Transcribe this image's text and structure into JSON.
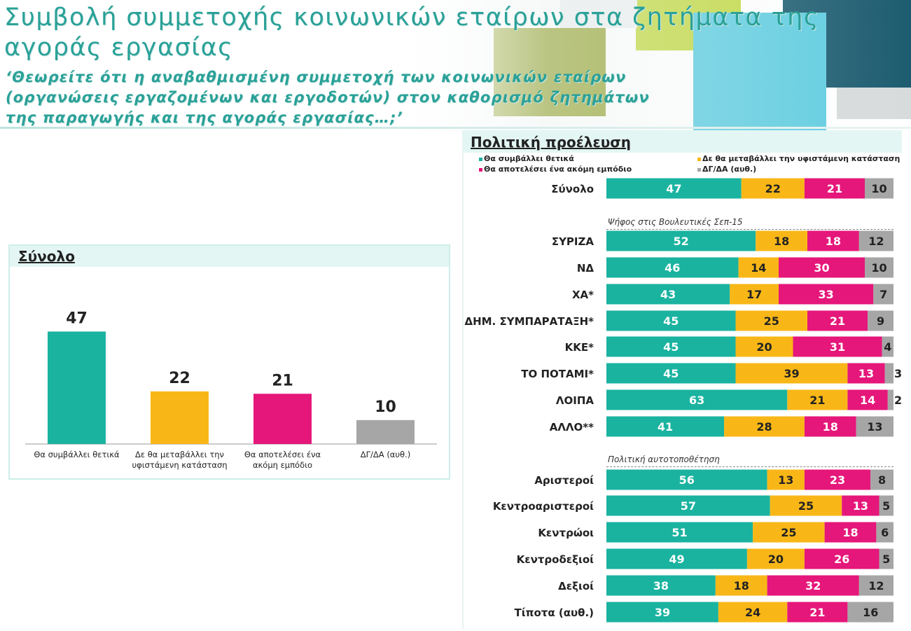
{
  "header": {
    "title": "Συμβολή συμμετοχής κοινωνικών εταίρων στα ζητήματα της αγοράς εργασίας",
    "question": "‘Θεωρείτε ότι η αναβαθμισμένη συμμετοχή των κοινωνικών εταίρων (οργανώσεις εργαζομένων και εργοδοτών) στον καθορισμό ζητημάτων της παραγωγής και της αγοράς εργασίας…;’"
  },
  "colors": {
    "positive": "#1ab3a0",
    "no_change": "#f9b717",
    "obstacle": "#e5177a",
    "dk": "#a6a6a6"
  },
  "chart_data": [
    {
      "type": "bar",
      "title": "Σύνολο",
      "categories": [
        "Θα συμβάλλει θετικά",
        "Δε θα μεταβάλλει την υφιστάμενη κατάσταση",
        "Θα αποτελέσει ένα ακόμη εμπόδιο",
        "ΔΓ/ΔΑ (αυθ.)"
      ],
      "category_lines": [
        [
          "Θα συμβάλλει θετικά"
        ],
        [
          "Δε θα μεταβάλλει την",
          "υφιστάμενη κατάσταση"
        ],
        [
          "Θα αποτελέσει ένα",
          "ακόμη εμπόδιο"
        ],
        [
          "ΔΓ/ΔΑ (αυθ.)"
        ]
      ],
      "values": [
        47,
        22,
        21,
        10
      ],
      "ylim": [
        0,
        60
      ]
    },
    {
      "type": "bar",
      "orientation": "horizontal",
      "stacked": true,
      "title": "Πολιτική προέλευση",
      "legend": [
        "Θα συμβάλλει θετικά",
        "Δε θα μεταβάλλει την υφιστάμενη κατάσταση",
        "Θα αποτελέσει ένα ακόμη εμπόδιο",
        "ΔΓ/ΔΑ (αυθ.)"
      ],
      "sections": [
        {
          "label": "",
          "rows": [
            {
              "label": "Σύνολο",
              "values": [
                47,
                22,
                21,
                10
              ]
            }
          ]
        },
        {
          "label": "Ψήφος στις Βουλευτικές Σεπ-15",
          "rows": [
            {
              "label": "ΣΥΡΙΖΑ",
              "values": [
                52,
                18,
                18,
                12
              ]
            },
            {
              "label": "ΝΔ",
              "values": [
                46,
                14,
                30,
                10
              ]
            },
            {
              "label": "ΧΑ*",
              "values": [
                43,
                17,
                33,
                7
              ]
            },
            {
              "label": "ΔΗΜ. ΣΥΜΠΑΡΑΤΑΞΗ*",
              "values": [
                45,
                25,
                21,
                9
              ]
            },
            {
              "label": "ΚΚΕ*",
              "values": [
                45,
                20,
                31,
                4
              ]
            },
            {
              "label": "ΤΟ ΠΟΤΑΜΙ*",
              "values": [
                45,
                39,
                13,
                3
              ]
            },
            {
              "label": "ΛΟΙΠΑ",
              "values": [
                63,
                21,
                14,
                2
              ]
            },
            {
              "label": "ΑΛΛΟ**",
              "values": [
                41,
                28,
                18,
                13
              ]
            }
          ]
        },
        {
          "label": "Πολιτική αυτοτοποθέτηση",
          "rows": [
            {
              "label": "Αριστεροί",
              "values": [
                56,
                13,
                23,
                8
              ]
            },
            {
              "label": "Κεντροαριστεροί",
              "values": [
                57,
                25,
                13,
                5
              ]
            },
            {
              "label": "Κεντρώοι",
              "values": [
                51,
                25,
                18,
                6
              ]
            },
            {
              "label": "Κεντροδεξιοί",
              "values": [
                49,
                20,
                26,
                5
              ]
            },
            {
              "label": "Δεξιοί",
              "values": [
                38,
                18,
                32,
                12
              ]
            },
            {
              "label": "Τίποτα (αυθ.)",
              "values": [
                39,
                24,
                21,
                16
              ]
            }
          ]
        }
      ]
    }
  ]
}
